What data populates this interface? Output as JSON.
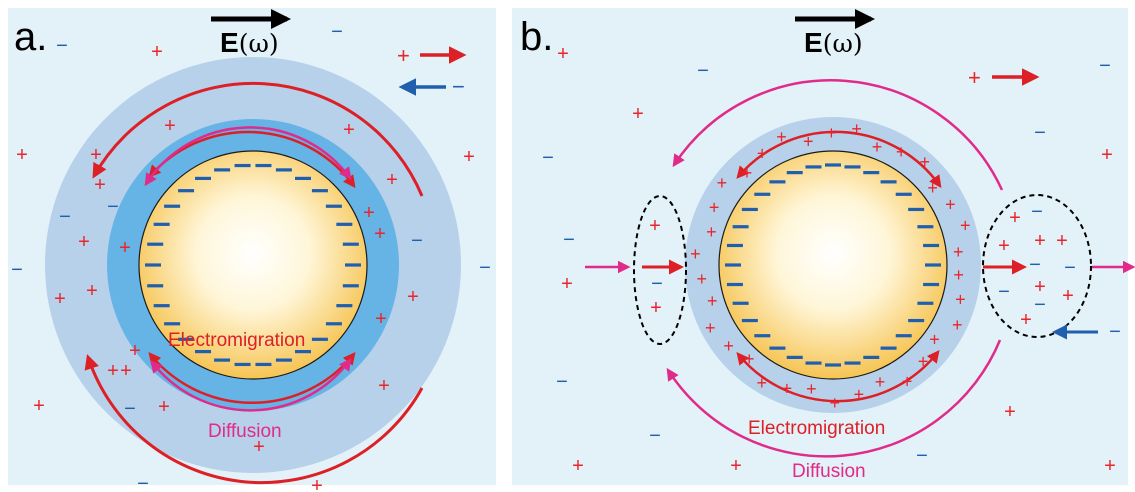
{
  "colors": {
    "background": "#ffffff",
    "panel_bg": "#e3f1f8",
    "outer_layer": "#b7d1ea",
    "inner_layer": "#66b3e6",
    "particle_core": "#fff6d8",
    "particle_edge": "#f6c453",
    "cation": "#e8262b",
    "anion": "#1f5fae",
    "electromigration": "#dd1f26",
    "diffusion": "#e02b8a",
    "field_arrow": "#000000"
  },
  "icons": {
    "field": "black-right-arrow",
    "cation_flow": "red-right-arrow",
    "anion_flow": "blue-left-arrow",
    "flux_region": "dashed-ellipse"
  },
  "panels": [
    {
      "id": "a",
      "label": "a.",
      "field_label": "E",
      "field_symbol": "(ω)",
      "electromigration_label": "Electromigration",
      "diffusion_label": "Diffusion"
    },
    {
      "id": "b",
      "label": "b.",
      "field_label": "E",
      "field_symbol": "(ω)",
      "electromigration_label": "Electromigration",
      "diffusion_label": "Diffusion"
    }
  ],
  "charge_symbols": {
    "plus": "+",
    "minus": "−"
  }
}
